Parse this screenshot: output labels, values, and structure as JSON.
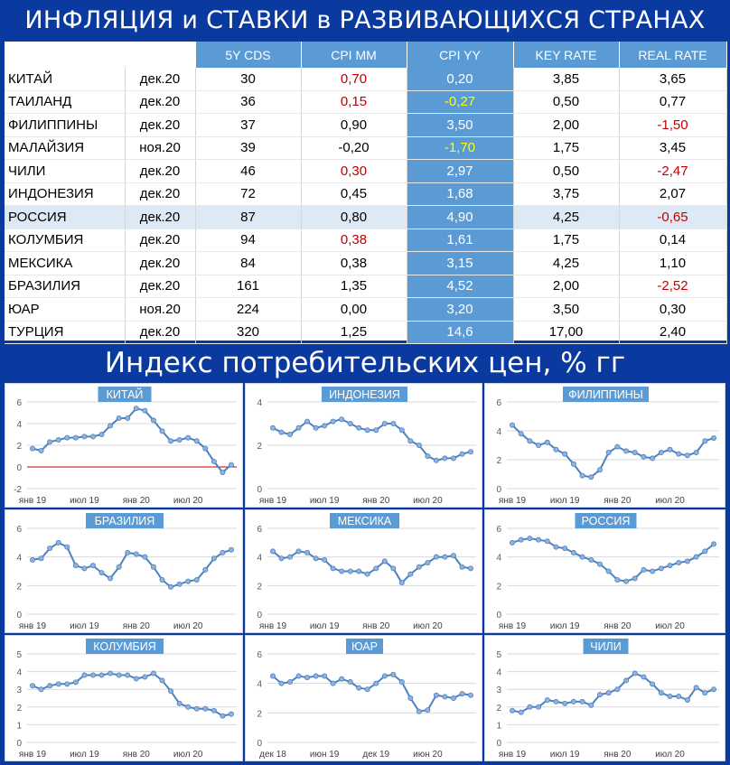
{
  "header": {
    "title": "ИНФЛЯЦИЯ и СТАВКИ в РАЗВИВАЮЩИХСЯ СТРАНАХ",
    "subtitle": "Индекс потребительских цен, % гг"
  },
  "colors": {
    "background": "#0a3aa0",
    "header_fill": "#5b9bd5",
    "negative": "#c00000",
    "highlight_yellow": "#ffff00",
    "line": "#4f81bd",
    "zero_line": "#c00000"
  },
  "table": {
    "columns": [
      "",
      "",
      "5Y CDS",
      "CPI MM",
      "CPI YY",
      "KEY RATE",
      "REAL RATE"
    ],
    "rows": [
      {
        "country": "КИТАЙ",
        "date": "дек.20",
        "cds": "30",
        "mm": "0,70",
        "yy": "0,20",
        "key": "3,85",
        "real": "3,65",
        "mm_neg": true,
        "yy_yel": false,
        "real_neg": false
      },
      {
        "country": "ТАИЛАНД",
        "date": "дек.20",
        "cds": "36",
        "mm": "0,15",
        "yy": "-0,27",
        "key": "0,50",
        "real": "0,77",
        "mm_neg": true,
        "yy_yel": true,
        "real_neg": false
      },
      {
        "country": "ФИЛИППИНЫ",
        "date": "дек.20",
        "cds": "37",
        "mm": "0,90",
        "yy": "3,50",
        "key": "2,00",
        "real": "-1,50",
        "mm_neg": false,
        "yy_yel": false,
        "real_neg": true
      },
      {
        "country": "МАЛАЙЗИЯ",
        "date": "ноя.20",
        "cds": "39",
        "mm": "-0,20",
        "yy": "-1,70",
        "key": "1,75",
        "real": "3,45",
        "mm_neg": false,
        "yy_yel": true,
        "real_neg": false
      },
      {
        "country": "ЧИЛИ",
        "date": "дек.20",
        "cds": "46",
        "mm": "0,30",
        "yy": "2,97",
        "key": "0,50",
        "real": "-2,47",
        "mm_neg": true,
        "yy_yel": false,
        "real_neg": true
      },
      {
        "country": "ИНДОНЕЗИЯ",
        "date": "дек.20",
        "cds": "72",
        "mm": "0,45",
        "yy": "1,68",
        "key": "3,75",
        "real": "2,07",
        "mm_neg": false,
        "yy_yel": false,
        "real_neg": false
      },
      {
        "country": "РОССИЯ",
        "date": "дек.20",
        "cds": "87",
        "mm": "0,80",
        "yy": "4,90",
        "key": "4,25",
        "real": "-0,65",
        "mm_neg": false,
        "yy_yel": false,
        "real_neg": true,
        "highlight": true
      },
      {
        "country": "КОЛУМБИЯ",
        "date": "дек.20",
        "cds": "94",
        "mm": "0,38",
        "yy": "1,61",
        "key": "1,75",
        "real": "0,14",
        "mm_neg": true,
        "yy_yel": false,
        "real_neg": false
      },
      {
        "country": "МЕКСИКА",
        "date": "дек.20",
        "cds": "84",
        "mm": "0,38",
        "yy": "3,15",
        "key": "4,25",
        "real": "1,10",
        "mm_neg": false,
        "yy_yel": false,
        "real_neg": false
      },
      {
        "country": "БРАЗИЛИЯ",
        "date": "дек.20",
        "cds": "161",
        "mm": "1,35",
        "yy": "4,52",
        "key": "2,00",
        "real": "-2,52",
        "mm_neg": false,
        "yy_yel": false,
        "real_neg": true
      },
      {
        "country": "ЮАР",
        "date": "ноя.20",
        "cds": "224",
        "mm": "0,00",
        "yy": "3,20",
        "key": "3,50",
        "real": "0,30",
        "mm_neg": false,
        "yy_yel": false,
        "real_neg": false
      },
      {
        "country": "ТУРЦИЯ",
        "date": "дек.20",
        "cds": "320",
        "mm": "1,25",
        "yy": "14,6",
        "key": "17,00",
        "real": "2,40",
        "mm_neg": false,
        "yy_yel": false,
        "real_neg": false
      }
    ]
  },
  "chart_data": [
    {
      "type": "line",
      "title": "КИТАЙ",
      "ylim": [
        -2,
        6
      ],
      "yticks": [
        -2,
        0,
        2,
        4,
        6
      ],
      "zero_line": true,
      "x_labels": [
        "янв 19",
        "июл 19",
        "янв 20",
        "июл 20"
      ],
      "x_label_index": [
        0,
        6,
        12,
        18
      ],
      "values": [
        1.7,
        1.5,
        2.3,
        2.5,
        2.7,
        2.7,
        2.8,
        2.8,
        3.0,
        3.8,
        4.5,
        4.5,
        5.4,
        5.2,
        4.3,
        3.3,
        2.4,
        2.5,
        2.7,
        2.4,
        1.7,
        0.5,
        -0.5,
        0.2
      ]
    },
    {
      "type": "line",
      "title": "ИНДОНЕЗИЯ",
      "ylim": [
        0,
        4
      ],
      "yticks": [
        0,
        2,
        4
      ],
      "x_labels": [
        "янв 19",
        "июл 19",
        "янв 20",
        "июл 20"
      ],
      "x_label_index": [
        0,
        6,
        12,
        18
      ],
      "values": [
        2.8,
        2.6,
        2.5,
        2.8,
        3.1,
        2.8,
        2.9,
        3.1,
        3.2,
        3.0,
        2.8,
        2.7,
        2.7,
        3.0,
        3.0,
        2.7,
        2.2,
        2.0,
        1.5,
        1.3,
        1.4,
        1.4,
        1.6,
        1.7
      ]
    },
    {
      "type": "line",
      "title": "ФИЛИППИНЫ",
      "ylim": [
        0,
        6
      ],
      "yticks": [
        0,
        2,
        4,
        6
      ],
      "x_labels": [
        "янв 19",
        "июл 19",
        "янв 20",
        "июл 20"
      ],
      "x_label_index": [
        0,
        6,
        12,
        18
      ],
      "values": [
        4.4,
        3.8,
        3.3,
        3.0,
        3.2,
        2.7,
        2.4,
        1.7,
        0.9,
        0.8,
        1.3,
        2.5,
        2.9,
        2.6,
        2.5,
        2.2,
        2.1,
        2.5,
        2.7,
        2.4,
        2.3,
        2.5,
        3.3,
        3.5
      ]
    },
    {
      "type": "line",
      "title": "БРАЗИЛИЯ",
      "ylim": [
        0,
        6
      ],
      "yticks": [
        0,
        2,
        4,
        6
      ],
      "x_labels": [
        "янв 19",
        "июл 19",
        "янв 20",
        "июл 20"
      ],
      "x_label_index": [
        0,
        6,
        12,
        18
      ],
      "values": [
        3.8,
        3.9,
        4.6,
        5.0,
        4.7,
        3.4,
        3.2,
        3.4,
        2.9,
        2.5,
        3.3,
        4.3,
        4.2,
        4.0,
        3.3,
        2.4,
        1.9,
        2.1,
        2.3,
        2.4,
        3.1,
        3.9,
        4.3,
        4.5
      ]
    },
    {
      "type": "line",
      "title": "МЕКСИКА",
      "ylim": [
        0,
        6
      ],
      "yticks": [
        0,
        2,
        4,
        6
      ],
      "x_labels": [
        "янв 19",
        "июл 19",
        "янв 20",
        "июл 20"
      ],
      "x_label_index": [
        0,
        6,
        12,
        18
      ],
      "values": [
        4.4,
        3.9,
        4.0,
        4.4,
        4.3,
        3.9,
        3.8,
        3.2,
        3.0,
        3.0,
        3.0,
        2.8,
        3.2,
        3.7,
        3.2,
        2.2,
        2.8,
        3.3,
        3.6,
        4.0,
        4.0,
        4.1,
        3.3,
        3.2
      ]
    },
    {
      "type": "line",
      "title": "РОССИЯ",
      "ylim": [
        0,
        6
      ],
      "yticks": [
        0,
        2,
        4,
        6
      ],
      "x_labels": [
        "янв 19",
        "июл 19",
        "янв 20",
        "июл 20"
      ],
      "x_label_index": [
        0,
        6,
        12,
        18
      ],
      "values": [
        5.0,
        5.2,
        5.3,
        5.2,
        5.1,
        4.7,
        4.6,
        4.3,
        4.0,
        3.8,
        3.5,
        3.0,
        2.4,
        2.3,
        2.5,
        3.1,
        3.0,
        3.2,
        3.4,
        3.6,
        3.7,
        4.0,
        4.4,
        4.9
      ]
    },
    {
      "type": "line",
      "title": "КОЛУМБИЯ",
      "ylim": [
        0,
        5
      ],
      "yticks": [
        0,
        1,
        2,
        3,
        4,
        5
      ],
      "x_labels": [
        "янв 19",
        "июл 19",
        "янв 20",
        "июл 20"
      ],
      "x_label_index": [
        0,
        6,
        12,
        18
      ],
      "values": [
        3.2,
        3.0,
        3.2,
        3.3,
        3.3,
        3.4,
        3.8,
        3.8,
        3.8,
        3.9,
        3.8,
        3.8,
        3.6,
        3.7,
        3.9,
        3.5,
        2.9,
        2.2,
        2.0,
        1.9,
        1.9,
        1.8,
        1.5,
        1.6
      ]
    },
    {
      "type": "line",
      "title": "ЮАР",
      "ylim": [
        0,
        6
      ],
      "yticks": [
        0,
        2,
        4,
        6
      ],
      "x_labels": [
        "дек 18",
        "июн 19",
        "дек 19",
        "июн 20"
      ],
      "x_label_index": [
        0,
        6,
        12,
        18
      ],
      "values": [
        4.5,
        4.0,
        4.1,
        4.5,
        4.4,
        4.5,
        4.5,
        4.0,
        4.3,
        4.1,
        3.7,
        3.6,
        4.0,
        4.5,
        4.6,
        4.1,
        3.0,
        2.1,
        2.2,
        3.2,
        3.1,
        3.0,
        3.3,
        3.2
      ]
    },
    {
      "type": "line",
      "title": "ЧИЛИ",
      "ylim": [
        0,
        5
      ],
      "yticks": [
        0,
        1,
        2,
        3,
        4,
        5
      ],
      "x_labels": [
        "янв 19",
        "июл 19",
        "янв 20",
        "июл 20"
      ],
      "x_label_index": [
        0,
        6,
        12,
        18
      ],
      "values": [
        1.8,
        1.7,
        2.0,
        2.0,
        2.4,
        2.3,
        2.2,
        2.3,
        2.3,
        2.1,
        2.7,
        2.8,
        3.0,
        3.5,
        3.9,
        3.7,
        3.3,
        2.8,
        2.6,
        2.6,
        2.4,
        3.1,
        2.8,
        3.0
      ]
    }
  ]
}
